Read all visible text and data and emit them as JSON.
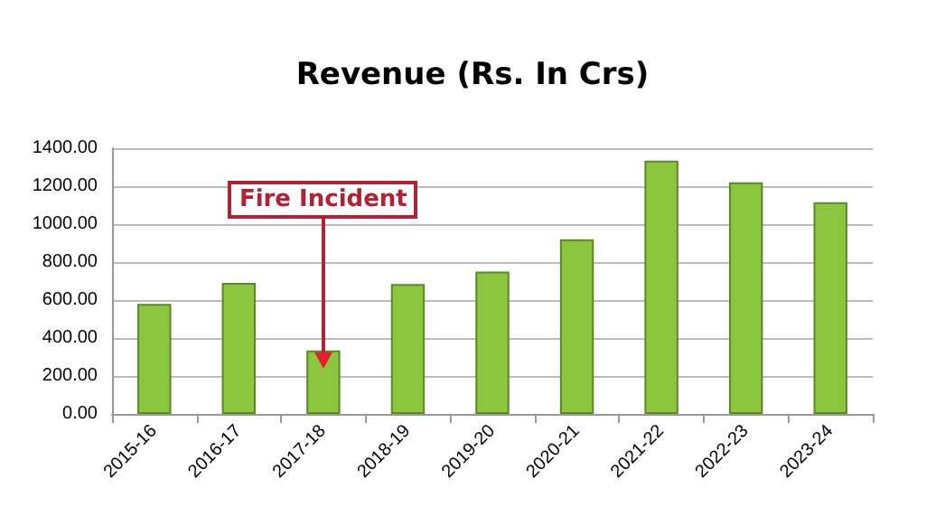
{
  "chart_data": {
    "type": "bar",
    "title": "Revenue (Rs. In Crs)",
    "categories": [
      "2015-16",
      "2016-17",
      "2017-18",
      "2018-19",
      "2019-20",
      "2020-21",
      "2021-22",
      "2022-23",
      "2023-24"
    ],
    "values": [
      580,
      690,
      335,
      685,
      750,
      920,
      1335,
      1220,
      1115
    ],
    "color": "#8cc63f",
    "ylim": [
      0,
      1400
    ],
    "yticks": [
      {
        "value": 0,
        "label": "0.00"
      },
      {
        "value": 200,
        "label": "200.00"
      },
      {
        "value": 400,
        "label": "400.00"
      },
      {
        "value": 600,
        "label": "600.00"
      },
      {
        "value": 800,
        "label": "800.00"
      },
      {
        "value": 1000,
        "label": "1000.00"
      },
      {
        "value": 1200,
        "label": "1200.00"
      },
      {
        "value": 1400,
        "label": "1400.00"
      }
    ],
    "grid": true,
    "annotations": [
      {
        "text": "Fire Incident",
        "x": "2017-18",
        "y": 335
      }
    ]
  }
}
